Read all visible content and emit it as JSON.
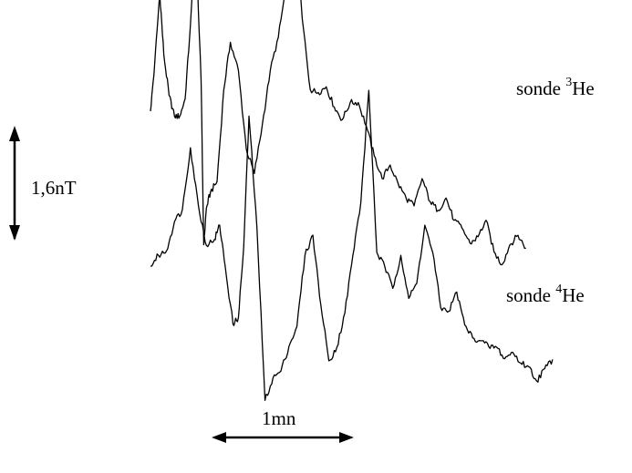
{
  "chart_data": {
    "type": "line",
    "title": "",
    "xlabel": "",
    "ylabel": "",
    "scale_bars": {
      "vertical": {
        "label": "1,6nT",
        "value": 1.6,
        "unit": "nT"
      },
      "horizontal": {
        "label": "1mn",
        "value": 1,
        "unit": "min"
      }
    },
    "x_range_min": [
      0,
      3.1
    ],
    "series": [
      {
        "label_prefix": "sonde ",
        "label_sup": "3",
        "label_suffix": "He",
        "x": [
          0,
          0.03,
          0.07,
          0.1,
          0.14,
          0.18,
          0.22,
          0.26,
          0.3,
          0.34,
          0.38,
          0.4,
          0.42,
          0.45,
          0.5,
          0.55,
          0.6,
          0.66,
          0.72,
          0.78,
          0.84,
          0.9,
          0.96,
          1.02,
          1.08,
          1.14,
          1.2,
          1.26,
          1.32,
          1.38,
          1.44,
          1.5,
          1.56,
          1.62,
          1.68,
          1.74,
          1.8,
          1.86,
          1.92,
          1.98,
          2.04,
          2.1,
          2.16,
          2.22,
          2.28,
          2.34,
          2.4,
          2.46,
          2.52,
          2.58,
          2.64,
          2.7,
          2.76,
          2.82
        ],
        "y": [
          0.0,
          0.62,
          1.65,
          0.79,
          0.22,
          -0.07,
          -0.07,
          0.17,
          1.2,
          2.39,
          0.43,
          -1.86,
          -1.35,
          -1.13,
          -0.98,
          0.29,
          0.96,
          0.57,
          -0.53,
          -0.87,
          -0.19,
          0.57,
          1.03,
          1.75,
          2.7,
          1.29,
          0.3,
          0.26,
          0.34,
          0.06,
          -0.12,
          0.12,
          0.12,
          -0.2,
          -0.62,
          -0.94,
          -0.75,
          -1.01,
          -1.21,
          -1.32,
          -0.94,
          -1.26,
          -1.38,
          -1.21,
          -1.52,
          -1.63,
          -1.84,
          -1.75,
          -1.52,
          -1.96,
          -2.14,
          -1.86,
          -1.73,
          -1.91
        ]
      },
      {
        "label_prefix": "sonde ",
        "label_sup": "4",
        "label_suffix": "He",
        "x": [
          0,
          0.06,
          0.12,
          0.18,
          0.24,
          0.3,
          0.36,
          0.42,
          0.48,
          0.52,
          0.56,
          0.62,
          0.66,
          0.7,
          0.74,
          0.8,
          0.86,
          0.92,
          0.98,
          1.04,
          1.1,
          1.16,
          1.22,
          1.28,
          1.34,
          1.4,
          1.46,
          1.52,
          1.58,
          1.64,
          1.7,
          1.76,
          1.82,
          1.88,
          1.94,
          2.0,
          2.06,
          2.12,
          2.18,
          2.24,
          2.3,
          2.36,
          2.42,
          2.48,
          2.54,
          2.6,
          2.66,
          2.72,
          2.78,
          2.84,
          2.9,
          2.96,
          3.02
        ],
        "y": [
          0.0,
          0.15,
          0.21,
          0.62,
          0.79,
          1.65,
          0.84,
          0.29,
          0.37,
          0.57,
          0.01,
          -0.81,
          -0.72,
          0.26,
          2.09,
          0.52,
          -1.87,
          -1.56,
          -1.46,
          -1.12,
          -0.84,
          0.15,
          0.43,
          -0.55,
          -1.32,
          -1.13,
          -0.65,
          0.15,
          0.89,
          2.45,
          0.19,
          -0.01,
          -0.31,
          0.15,
          -0.45,
          -0.24,
          0.57,
          0.19,
          -0.58,
          -0.63,
          -0.36,
          -0.82,
          -1.0,
          -1.04,
          -1.12,
          -1.13,
          -1.29,
          -1.2,
          -1.35,
          -1.4,
          -1.6,
          -1.43,
          -1.3
        ]
      }
    ]
  }
}
